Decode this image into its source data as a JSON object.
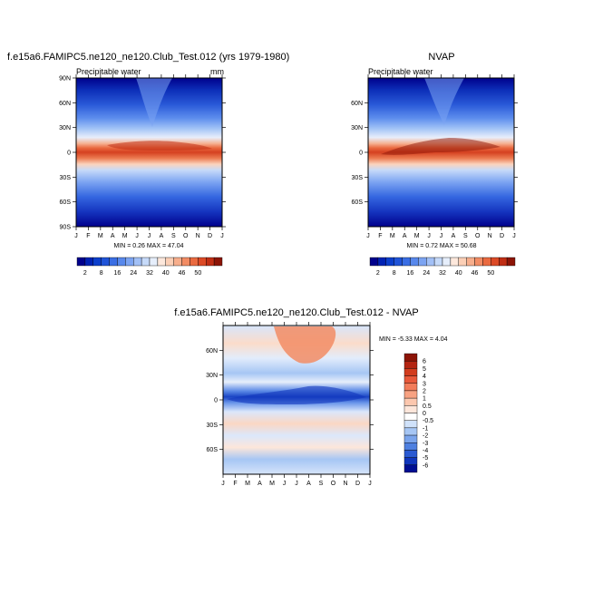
{
  "chart_data": [
    {
      "type": "heatmap",
      "title": "f.e15a6.FAMIPC5.ne120_ne120.Club_Test.012 (yrs 1979-1980)",
      "subtitle": "Precipitable water",
      "units": "mm",
      "x_tick_labels": [
        "J",
        "F",
        "M",
        "A",
        "M",
        "J",
        "J",
        "A",
        "S",
        "O",
        "N",
        "D",
        "J"
      ],
      "y_tick_labels": [
        "90N",
        "60N",
        "30N",
        "0",
        "30S",
        "60S",
        "90S"
      ],
      "ylim": [
        -90,
        90
      ],
      "stats_text": "MIN =  0.26 MAX =  47.04",
      "min": 0.26,
      "max": 47.04,
      "colorbar": {
        "levels": [
          2,
          8,
          16,
          24,
          32,
          40,
          46,
          50
        ],
        "labels": [
          "2",
          "8",
          "16",
          "24",
          "32",
          "40",
          "46",
          "50"
        ],
        "colors": [
          "#00008c",
          "#0022b4",
          "#0c3fcc",
          "#2054d8",
          "#3a6ee4",
          "#5888ec",
          "#7ca4f2",
          "#a2c0f6",
          "#c6daf9",
          "#e6eefb",
          "#fde8dc",
          "#fbcfb6",
          "#f7ae8c",
          "#f28c64",
          "#ea6a40",
          "#dc4a26",
          "#c02e14",
          "#8c1406"
        ]
      }
    },
    {
      "type": "heatmap",
      "title": "NVAP",
      "subtitle": "Precipitable water",
      "x_tick_labels": [
        "J",
        "F",
        "M",
        "A",
        "M",
        "J",
        "J",
        "A",
        "S",
        "O",
        "N",
        "D",
        "J"
      ],
      "y_tick_labels": [
        "60N",
        "30N",
        "0",
        "30S",
        "60S"
      ],
      "ylim": [
        -90,
        90
      ],
      "stats_text": "MIN =  0.72 MAX =  50.68",
      "min": 0.72,
      "max": 50.68,
      "colorbar": {
        "levels": [
          2,
          8,
          16,
          24,
          32,
          40,
          46,
          50
        ],
        "labels": [
          "2",
          "8",
          "16",
          "24",
          "32",
          "40",
          "46",
          "50"
        ],
        "colors": [
          "#00008c",
          "#0022b4",
          "#0c3fcc",
          "#2054d8",
          "#3a6ee4",
          "#5888ec",
          "#7ca4f2",
          "#a2c0f6",
          "#c6daf9",
          "#e6eefb",
          "#fde8dc",
          "#fbcfb6",
          "#f7ae8c",
          "#f28c64",
          "#ea6a40",
          "#dc4a26",
          "#c02e14",
          "#8c1406"
        ]
      }
    },
    {
      "type": "heatmap",
      "title": "f.e15a6.FAMIPC5.ne120_ne120.Club_Test.012 - NVAP",
      "x_tick_labels": [
        "J",
        "F",
        "M",
        "A",
        "M",
        "J",
        "J",
        "A",
        "S",
        "O",
        "N",
        "D",
        "J"
      ],
      "y_tick_labels": [
        "60N",
        "30N",
        "0",
        "30S",
        "60S"
      ],
      "ylim": [
        -90,
        90
      ],
      "stats_text": "MIN =  -5.33 MAX =  4.04",
      "min": -5.33,
      "max": 4.04,
      "colorbar": {
        "levels": [
          6,
          5,
          4,
          3,
          2,
          1,
          0.5,
          0,
          -0.5,
          -1,
          -2,
          -3,
          -4,
          -5,
          -6
        ],
        "labels": [
          "6",
          "5",
          "4",
          "3",
          "2",
          "1",
          "0.5",
          "0",
          "-0.5",
          "-1",
          "-2",
          "-3",
          "-4",
          "-5",
          "-6"
        ],
        "colors": [
          "#8c1406",
          "#b42512",
          "#d23c1e",
          "#e8583a",
          "#f27c5a",
          "#f8a282",
          "#fcc7ae",
          "#fde6da",
          "#ffffff",
          "#d0e2fa",
          "#a6c6f4",
          "#7aa4ec",
          "#4e80e0",
          "#2a5ad2",
          "#1036bc",
          "#000e92"
        ]
      }
    }
  ]
}
